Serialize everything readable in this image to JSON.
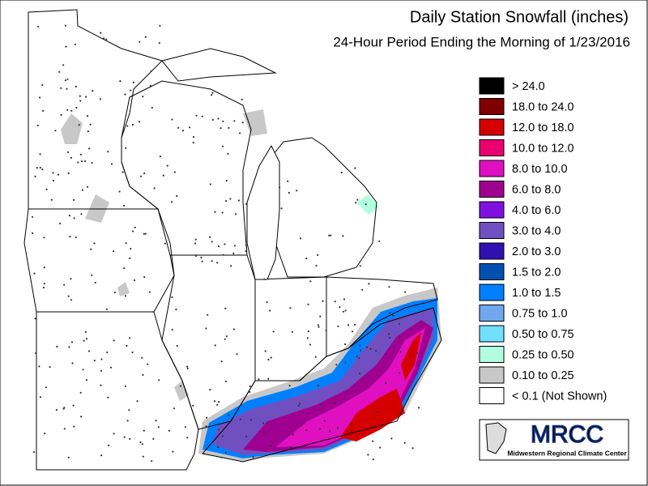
{
  "header": {
    "title": "Daily Station Snowfall (inches)",
    "subtitle": "24-Hour Period Ending the Morning of 1/23/2016"
  },
  "legend": {
    "items": [
      {
        "label": "> 24.0",
        "color": "#000000"
      },
      {
        "label": "18.0 to 24.0",
        "color": "#800000"
      },
      {
        "label": "12.0 to 18.0",
        "color": "#d40000"
      },
      {
        "label": "10.0 to 12.0",
        "color": "#ec0070"
      },
      {
        "label": "8.0 to 10.0",
        "color": "#e010c0"
      },
      {
        "label": "6.0 to 8.0",
        "color": "#a00090"
      },
      {
        "label": "4.0 to 6.0",
        "color": "#8010e0"
      },
      {
        "label": "3.0 to 4.0",
        "color": "#7050c0"
      },
      {
        "label": "2.0 to 3.0",
        "color": "#3010b0"
      },
      {
        "label": "1.5 to 2.0",
        "color": "#0050b0"
      },
      {
        "label": "1.0 to 1.5",
        "color": "#0080ff"
      },
      {
        "label": "0.75 to 1.0",
        "color": "#70a8f0"
      },
      {
        "label": "0.50 to 0.75",
        "color": "#70e0ff"
      },
      {
        "label": "0.25 to 0.50",
        "color": "#b0ffe0"
      },
      {
        "label": "0.10 to 0.25",
        "color": "#c8c8c8"
      },
      {
        "label": "< 0.1 (Not Shown)",
        "color": "#ffffff"
      }
    ]
  },
  "logo": {
    "name": "MRCC",
    "caption": "Midwestern Regional Climate Center"
  }
}
